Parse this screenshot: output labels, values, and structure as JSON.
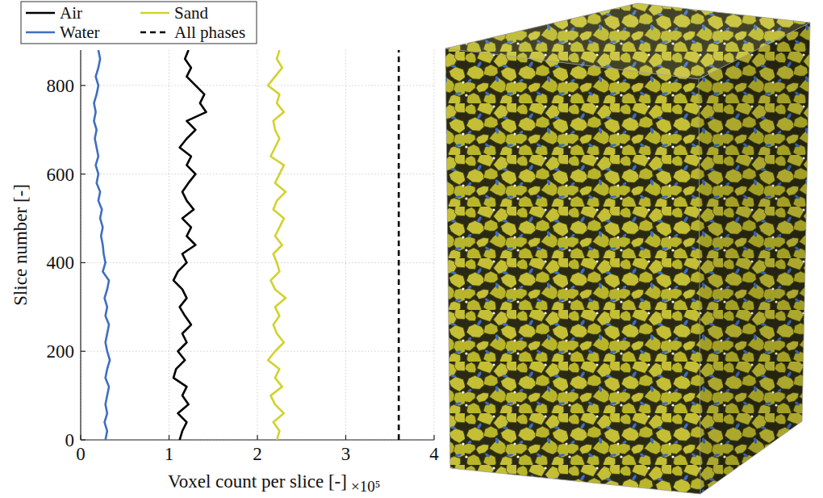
{
  "chart_data": {
    "type": "line",
    "orientation": "horizontal",
    "x_label": "Voxel count per slice [-]",
    "x_scale_label": "×10⁵",
    "y_label": "Slice number [-]",
    "xlim": [
      0,
      4
    ],
    "xticks": [
      0,
      1,
      2,
      3,
      4
    ],
    "ylim": [
      0,
      880
    ],
    "yticks": [
      0,
      200,
      400,
      600,
      800
    ],
    "grid": true,
    "legend": "top-left",
    "x": [
      0,
      20,
      40,
      60,
      80,
      100,
      120,
      140,
      160,
      180,
      200,
      220,
      240,
      260,
      280,
      300,
      320,
      340,
      360,
      380,
      400,
      420,
      440,
      460,
      480,
      500,
      520,
      540,
      560,
      580,
      600,
      620,
      640,
      660,
      680,
      700,
      720,
      740,
      760,
      780,
      800,
      820,
      840,
      860,
      880
    ],
    "series": [
      {
        "name": "Air",
        "color": "#000000",
        "line_style": "solid",
        "values": [
          1.12,
          1.15,
          1.2,
          1.1,
          1.22,
          1.15,
          1.2,
          1.05,
          1.08,
          1.18,
          1.1,
          1.2,
          1.15,
          1.25,
          1.18,
          1.12,
          1.2,
          1.15,
          1.05,
          1.1,
          1.2,
          1.15,
          1.3,
          1.2,
          1.25,
          1.15,
          1.28,
          1.2,
          1.15,
          1.22,
          1.3,
          1.2,
          1.25,
          1.12,
          1.2,
          1.3,
          1.2,
          1.42,
          1.35,
          1.4,
          1.3,
          1.2,
          1.25,
          1.18,
          1.22
        ]
      },
      {
        "name": "Water",
        "color": "#3f6fc0",
        "line_style": "solid",
        "values": [
          0.28,
          0.3,
          0.27,
          0.3,
          0.28,
          0.3,
          0.32,
          0.28,
          0.3,
          0.33,
          0.3,
          0.28,
          0.3,
          0.32,
          0.28,
          0.3,
          0.27,
          0.3,
          0.32,
          0.25,
          0.28,
          0.26,
          0.25,
          0.23,
          0.25,
          0.22,
          0.24,
          0.2,
          0.22,
          0.18,
          0.2,
          0.17,
          0.2,
          0.18,
          0.16,
          0.18,
          0.15,
          0.17,
          0.15,
          0.18,
          0.2,
          0.17,
          0.2,
          0.22,
          0.2
        ]
      },
      {
        "name": "Sand",
        "color": "#d2d22e",
        "line_style": "solid",
        "values": [
          2.22,
          2.25,
          2.18,
          2.3,
          2.2,
          2.15,
          2.28,
          2.2,
          2.25,
          2.12,
          2.2,
          2.3,
          2.22,
          2.18,
          2.25,
          2.2,
          2.32,
          2.2,
          2.15,
          2.25,
          2.22,
          2.18,
          2.28,
          2.2,
          2.25,
          2.3,
          2.18,
          2.22,
          2.32,
          2.2,
          2.25,
          2.3,
          2.15,
          2.2,
          2.25,
          2.2,
          2.18,
          2.3,
          2.22,
          2.25,
          2.12,
          2.2,
          2.28,
          2.22,
          2.25
        ]
      },
      {
        "name": "All phases",
        "color": "#000000",
        "line_style": "dashed",
        "values": [
          3.6,
          3.6,
          3.6,
          3.6,
          3.6,
          3.6,
          3.6,
          3.6,
          3.6,
          3.6,
          3.6,
          3.6,
          3.6,
          3.6,
          3.6,
          3.6,
          3.6,
          3.6,
          3.6,
          3.6,
          3.6,
          3.6,
          3.6,
          3.6,
          3.6,
          3.6,
          3.6,
          3.6,
          3.6,
          3.6,
          3.6,
          3.6,
          3.6,
          3.6,
          3.6,
          3.6,
          3.6,
          3.6,
          3.6,
          3.6,
          3.6,
          3.6,
          3.6,
          3.6,
          3.6
        ]
      }
    ]
  }
}
